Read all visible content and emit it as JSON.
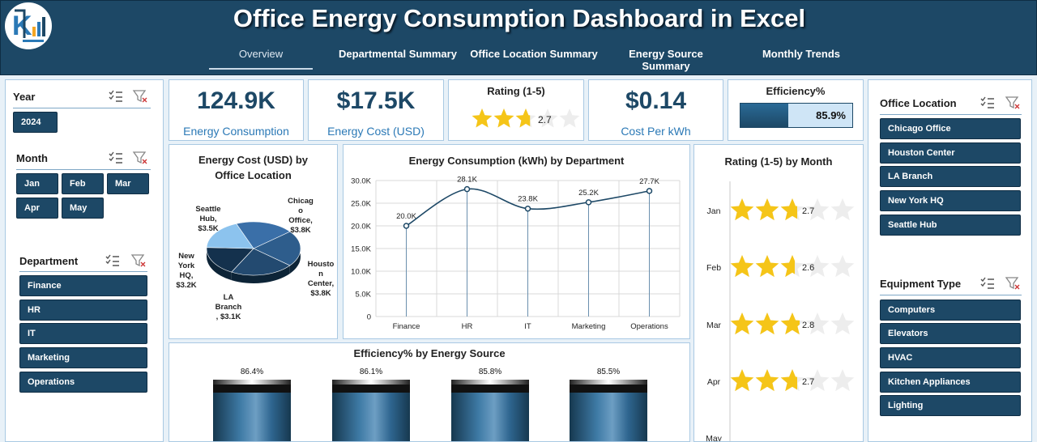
{
  "header": {
    "title": "Office Energy Consumption Dashboard in Excel",
    "tabs": [
      {
        "label": "Overview"
      },
      {
        "label": "Departmental Summary"
      },
      {
        "label": "Office Location Summary"
      },
      {
        "label": "Energy Source Summary"
      },
      {
        "label": "Monthly Trends"
      }
    ]
  },
  "left_slicers": {
    "year": {
      "title": "Year",
      "items": [
        "2024"
      ]
    },
    "month": {
      "title": "Month",
      "items": [
        "Jan",
        "Feb",
        "Mar",
        "Apr",
        "May"
      ]
    },
    "department": {
      "title": "Department",
      "items": [
        "Finance",
        "HR",
        "IT",
        "Marketing",
        "Operations"
      ]
    }
  },
  "kpis": {
    "energy": {
      "value": "124.9K",
      "label": "Energy Consumption"
    },
    "cost": {
      "value": "$17.5K",
      "label": "Energy Cost (USD)"
    },
    "rating": {
      "title": "Rating (1-5)",
      "value": "2.7",
      "fraction": 0.54
    },
    "per_kwh": {
      "value": "$0.14",
      "label": "Cost Per kWh"
    },
    "efficiency": {
      "title": "Efficiency%",
      "value": "85.9%",
      "fraction": 0.859
    }
  },
  "pie": {
    "title_line1": "Energy Cost (USD) by",
    "title_line2": "Office Location",
    "labels": {
      "seattle": [
        "Seattle",
        "Hub,",
        "$3.5K"
      ],
      "chicago": [
        "Chicag",
        "o",
        "Office,",
        "$3.8K"
      ],
      "houston": [
        "Housto",
        "n",
        "Center,",
        "$3.8K"
      ],
      "la": [
        "LA",
        "Branch",
        ", $3.1K"
      ],
      "ny": [
        "New",
        "York",
        "HQ,",
        "$3.2K"
      ]
    }
  },
  "line": {
    "title": "Energy Consumption (kWh) by Department",
    "data_labels": [
      "20.0K",
      "28.1K",
      "23.8K",
      "25.2K",
      "27.7K"
    ],
    "y_ticks": [
      "30.0K",
      "25.0K",
      "20.0K",
      "15.0K",
      "10.0K",
      "5.0K",
      "0"
    ]
  },
  "rating_month": {
    "title": "Rating (1-5) by Month",
    "labels": [
      "Jan",
      "Feb",
      "Mar",
      "Apr",
      "May"
    ],
    "values_text": [
      "2.7",
      "2.6",
      "2.8",
      "2.7"
    ]
  },
  "efficiency_source": {
    "title": "Efficiency% by Energy Source",
    "labels": [
      "86.4%",
      "86.1%",
      "85.8%",
      "85.5%"
    ]
  },
  "right_slicers": {
    "location": {
      "title": "Office Location",
      "items": [
        "Chicago Office",
        "Houston Center",
        "LA Branch",
        "New York HQ",
        "Seattle Hub"
      ]
    },
    "equipment": {
      "title": "Equipment Type",
      "items": [
        "Computers",
        "Elevators",
        "HVAC",
        "Kitchen Appliances",
        "Lighting"
      ]
    }
  },
  "chart_data": [
    {
      "type": "pie",
      "title": "Energy Cost (USD) by Office Location",
      "categories": [
        "Seattle Hub",
        "Chicago Office",
        "Houston Center",
        "LA Branch",
        "New York HQ"
      ],
      "values": [
        3.5,
        3.8,
        3.8,
        3.1,
        3.2
      ],
      "unit": "$K",
      "colors": [
        "#3a6fa8",
        "#2e5d8c",
        "#234a70",
        "#14314d",
        "#8cc3ee"
      ]
    },
    {
      "type": "line",
      "title": "Energy Consumption (kWh) by Department",
      "categories": [
        "Finance",
        "HR",
        "IT",
        "Marketing",
        "Operations"
      ],
      "values": [
        20.0,
        28.1,
        23.8,
        25.2,
        27.7
      ],
      "unit": "K",
      "ylim": [
        0,
        30
      ],
      "grid": true
    },
    {
      "type": "bar",
      "title": "Rating (1-5) by Month",
      "categories": [
        "Jan",
        "Feb",
        "Mar",
        "Apr",
        "May"
      ],
      "values": [
        2.7,
        2.6,
        2.8,
        2.7,
        null
      ],
      "ylim": [
        0,
        5
      ]
    },
    {
      "type": "bar",
      "title": "Efficiency% by Energy Source",
      "categories": [
        "",
        "",
        "",
        ""
      ],
      "values": [
        86.4,
        86.1,
        85.8,
        85.5
      ],
      "unit": "%"
    }
  ],
  "colors": {
    "header_bg": "#1d4866",
    "accent": "#2b79b6",
    "star": "#f5c518",
    "panel_border": "#a9c9e3"
  }
}
